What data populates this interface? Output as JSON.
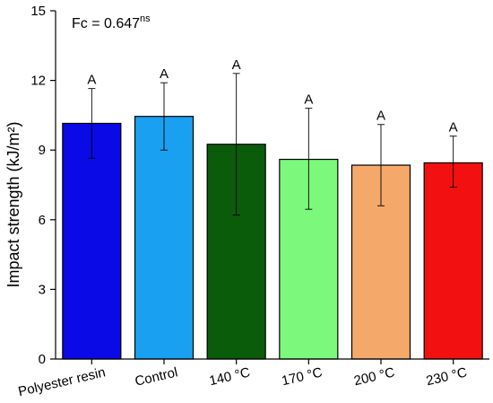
{
  "chart_data": {
    "type": "bar",
    "title": "",
    "annotation": {
      "text": "Fc = 0.647",
      "superscript": "ns"
    },
    "xlabel": "",
    "ylabel": "Impact strength (kJ/m²)",
    "ylim": [
      0,
      15
    ],
    "yticks": [
      0,
      3,
      6,
      9,
      12,
      15
    ],
    "categories": [
      "Polyester resin",
      "Control",
      "140 °C",
      "170 °C",
      "200 °C",
      "230 °C"
    ],
    "values": [
      10.15,
      10.45,
      9.25,
      8.6,
      8.35,
      8.45
    ],
    "error_low": [
      8.65,
      9.0,
      6.2,
      6.45,
      6.6,
      7.4
    ],
    "error_high": [
      11.65,
      11.9,
      12.3,
      10.8,
      10.1,
      9.6
    ],
    "letters": [
      "A",
      "A",
      "A",
      "A",
      "A",
      "A"
    ],
    "colors": [
      "#0a0ae6",
      "#1aa0f0",
      "#0a5c0a",
      "#7cf97c",
      "#f4a96a",
      "#f21010"
    ],
    "grid": false,
    "legend": "none"
  }
}
